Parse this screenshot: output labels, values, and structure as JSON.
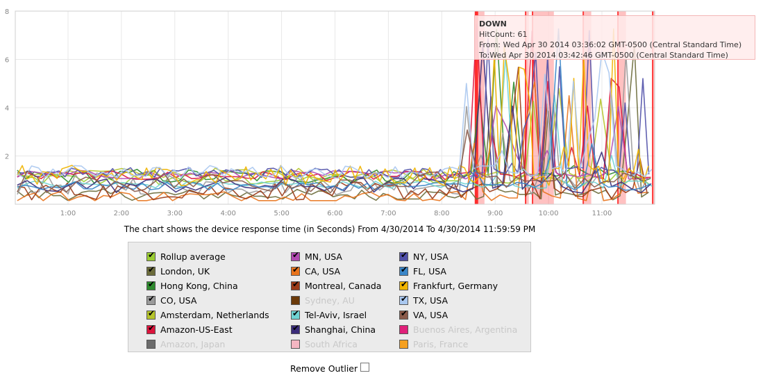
{
  "chart_data": {
    "type": "line",
    "ylim": [
      0,
      8
    ],
    "y_ticks": [
      "2",
      "4",
      "6",
      "8"
    ],
    "x_ticks": [
      "1:00",
      "2:00",
      "3:00",
      "4:00",
      "5:00",
      "6:00",
      "7:00",
      "8:00",
      "9:00",
      "10:00",
      "11:00"
    ],
    "x_range_hours": [
      0,
      24
    ],
    "grid": true,
    "down_bands": [
      [
        8.63,
        8.8
      ],
      [
        9.57,
        9.63
      ],
      [
        9.7,
        10.1
      ],
      [
        10.65,
        10.8
      ],
      [
        11.3,
        11.45
      ],
      [
        11.95,
        12.0
      ]
    ],
    "series": [
      {
        "name": "Rollup average",
        "color": "#9acd32",
        "visible": true
      },
      {
        "name": "London, UK",
        "color": "#6b6b3a",
        "visible": true
      },
      {
        "name": "Hong Kong, China",
        "color": "#2e8b2e",
        "visible": true
      },
      {
        "name": "CO, USA",
        "color": "#9a9a9a",
        "visible": true
      },
      {
        "name": "Amsterdam, Netherlands",
        "color": "#b5c42b",
        "visible": true
      },
      {
        "name": "Amazon-US-East",
        "color": "#dc143c",
        "visible": true
      },
      {
        "name": "Amazon, Japan",
        "color": "#6b6b6b",
        "visible": false
      },
      {
        "name": "MN, USA",
        "color": "#b04ab0",
        "visible": true
      },
      {
        "name": "CA, USA",
        "color": "#e8731c",
        "visible": true
      },
      {
        "name": "Montreal, Canada",
        "color": "#9a3a17",
        "visible": true
      },
      {
        "name": "Sydney, AU",
        "color": "#6b3a0a",
        "visible": false
      },
      {
        "name": "Tel-Aviv, Israel",
        "color": "#6fd3d3",
        "visible": true
      },
      {
        "name": "Shanghai, China",
        "color": "#3a2c7a",
        "visible": true
      },
      {
        "name": "South Africa",
        "color": "#f4b6c2",
        "visible": false
      },
      {
        "name": "NY, USA",
        "color": "#5050a8",
        "visible": true
      },
      {
        "name": "FL, USA",
        "color": "#3a86c8",
        "visible": true
      },
      {
        "name": "Frankfurt, Germany",
        "color": "#f0b400",
        "visible": true
      },
      {
        "name": "TX, USA",
        "color": "#aac8f0",
        "visible": true
      },
      {
        "name": "VA, USA",
        "color": "#8a5a4a",
        "visible": true
      },
      {
        "name": "Buenos Aires, Argentina",
        "color": "#e0207a",
        "visible": false
      },
      {
        "name": "Paris, France",
        "color": "#f5a020",
        "visible": false
      }
    ],
    "tooltip": {
      "title": "DOWN",
      "line1": "HitCount: 61",
      "line2": "From: Wed Apr 30 2014 03:36:02 GMT-0500 (Central Standard Time)",
      "line3": "To:Wed Apr 30 2014 03:42:46 GMT-0500 (Central Standard Time)"
    }
  },
  "caption": "The chart shows the device response time (in Seconds) From 4/30/2014 To 4/30/2014 11:59:59 PM",
  "remove_outlier_label": "Remove Outlier"
}
